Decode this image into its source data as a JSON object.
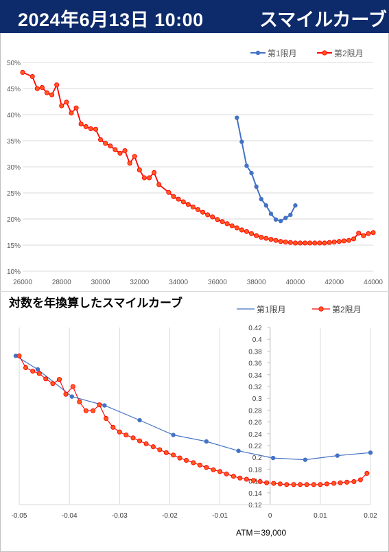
{
  "header": {
    "date": "2024年6月13日 10:00",
    "name": "スマイルカーブ"
  },
  "colors": {
    "header_bg": "#0d2a6b",
    "series1": "#4472c4",
    "series2": "#ff0000",
    "series2_fill": "#ff5a1f"
  },
  "chart_data": [
    {
      "type": "line",
      "title": "",
      "xlabel": "",
      "ylabel": "",
      "xlim": [
        26000,
        44000
      ],
      "ylim": [
        0.1,
        0.5
      ],
      "x_ticks": [
        "26000",
        "28000",
        "30000",
        "32000",
        "34000",
        "36000",
        "38000",
        "40000",
        "42000",
        "44000"
      ],
      "y_ticks": [
        "10%",
        "15%",
        "20%",
        "25%",
        "30%",
        "35%",
        "40%",
        "45%",
        "50%"
      ],
      "grid": "horizontal",
      "legend": "top-right",
      "series": [
        {
          "name": "第1限月",
          "color": "#4472c4",
          "x": [
            37000,
            37250,
            37500,
            37750,
            38000,
            38250,
            38500,
            38750,
            39000,
            39250,
            39500,
            39750,
            40000
          ],
          "y": [
            0.394,
            0.348,
            0.302,
            0.288,
            0.262,
            0.238,
            0.226,
            0.21,
            0.199,
            0.196,
            0.202,
            0.208,
            0.226
          ]
        },
        {
          "name": "第2限月",
          "color": "#ff0000",
          "x": [
            26000,
            26500,
            26750,
            27000,
            27250,
            27500,
            27750,
            28000,
            28250,
            28500,
            28750,
            29000,
            29250,
            29500,
            29750,
            30000,
            30250,
            30500,
            30750,
            31000,
            31250,
            31500,
            31750,
            32000,
            32250,
            32500,
            32750,
            33000,
            33500,
            33750,
            34000,
            34250,
            34500,
            34750,
            35000,
            35250,
            35500,
            35750,
            36000,
            36250,
            36500,
            36750,
            37000,
            37250,
            37500,
            37750,
            38000,
            38250,
            38500,
            38750,
            39000,
            39250,
            39500,
            39750,
            40000,
            40250,
            40500,
            40750,
            41000,
            41250,
            41500,
            41750,
            42000,
            42250,
            42500,
            42750,
            43000,
            43250,
            43500,
            43750,
            44000
          ],
          "y": [
            0.481,
            0.473,
            0.45,
            0.452,
            0.442,
            0.438,
            0.457,
            0.417,
            0.424,
            0.403,
            0.413,
            0.382,
            0.377,
            0.373,
            0.372,
            0.352,
            0.345,
            0.34,
            0.333,
            0.326,
            0.331,
            0.307,
            0.32,
            0.294,
            0.279,
            0.279,
            0.289,
            0.266,
            0.251,
            0.243,
            0.238,
            0.233,
            0.228,
            0.223,
            0.218,
            0.213,
            0.208,
            0.204,
            0.199,
            0.195,
            0.191,
            0.187,
            0.183,
            0.179,
            0.176,
            0.172,
            0.168,
            0.165,
            0.163,
            0.161,
            0.159,
            0.157,
            0.156,
            0.155,
            0.154,
            0.154,
            0.154,
            0.154,
            0.154,
            0.154,
            0.154,
            0.155,
            0.156,
            0.157,
            0.158,
            0.159,
            0.162,
            0.173,
            0.168,
            0.172,
            0.174
          ]
        }
      ]
    },
    {
      "type": "line",
      "title": "対数を年換算したスマイルカーブ",
      "xlabel": "",
      "ylabel": "",
      "xlim": [
        -0.05,
        0.02
      ],
      "ylim": [
        0.12,
        0.42
      ],
      "x_ticks": [
        "-0.05",
        "-0.04",
        "-0.03",
        "-0.02",
        "-0.01",
        "0",
        "0.01",
        "0.02"
      ],
      "y_ticks": [
        "0.12",
        "0.14",
        "0.16",
        "0.18",
        "0.2",
        "0.22",
        "0.24",
        "0.26",
        "0.28",
        "0.3",
        "0.32",
        "0.34",
        "0.36",
        "0.38",
        "0.4",
        "0.42"
      ],
      "grid": "vertical",
      "legend": "top-right",
      "annotation": "ATM＝39,000",
      "series": [
        {
          "name": "第1限月",
          "color": "#4472c4",
          "x": [
            -0.0507,
            -0.0463,
            -0.0395,
            -0.033,
            -0.026,
            -0.0193,
            -0.0127,
            -0.0063,
            0.0006,
            0.007,
            0.0134,
            0.02
          ],
          "y": [
            0.372,
            0.349,
            0.303,
            0.288,
            0.263,
            0.238,
            0.227,
            0.211,
            0.199,
            0.196,
            0.203,
            0.208
          ]
        },
        {
          "name": "第2限月",
          "color": "#ff0000",
          "x": [
            -0.05,
            -0.0487,
            -0.0473,
            -0.046,
            -0.0447,
            -0.0433,
            -0.042,
            -0.0407,
            -0.0393,
            -0.038,
            -0.0367,
            -0.0353,
            -0.034,
            -0.0327,
            -0.0313,
            -0.03,
            -0.0287,
            -0.0273,
            -0.026,
            -0.0247,
            -0.0233,
            -0.022,
            -0.0207,
            -0.0193,
            -0.018,
            -0.0167,
            -0.0153,
            -0.014,
            -0.0127,
            -0.0113,
            -0.01,
            -0.0087,
            -0.0073,
            -0.006,
            -0.0047,
            -0.0033,
            -0.002,
            -0.0007,
            0.0007,
            0.002,
            0.0033,
            0.0047,
            0.006,
            0.0073,
            0.0087,
            0.01,
            0.0113,
            0.0127,
            0.014,
            0.0153,
            0.0167,
            0.018,
            0.0193
          ],
          "y": [
            0.372,
            0.352,
            0.346,
            0.342,
            0.333,
            0.325,
            0.332,
            0.307,
            0.32,
            0.294,
            0.279,
            0.279,
            0.289,
            0.266,
            0.251,
            0.243,
            0.238,
            0.233,
            0.228,
            0.223,
            0.218,
            0.213,
            0.208,
            0.204,
            0.199,
            0.195,
            0.191,
            0.187,
            0.183,
            0.179,
            0.176,
            0.172,
            0.168,
            0.165,
            0.163,
            0.161,
            0.159,
            0.157,
            0.156,
            0.155,
            0.154,
            0.154,
            0.154,
            0.154,
            0.154,
            0.154,
            0.155,
            0.156,
            0.157,
            0.158,
            0.159,
            0.162,
            0.173
          ]
        }
      ]
    }
  ]
}
